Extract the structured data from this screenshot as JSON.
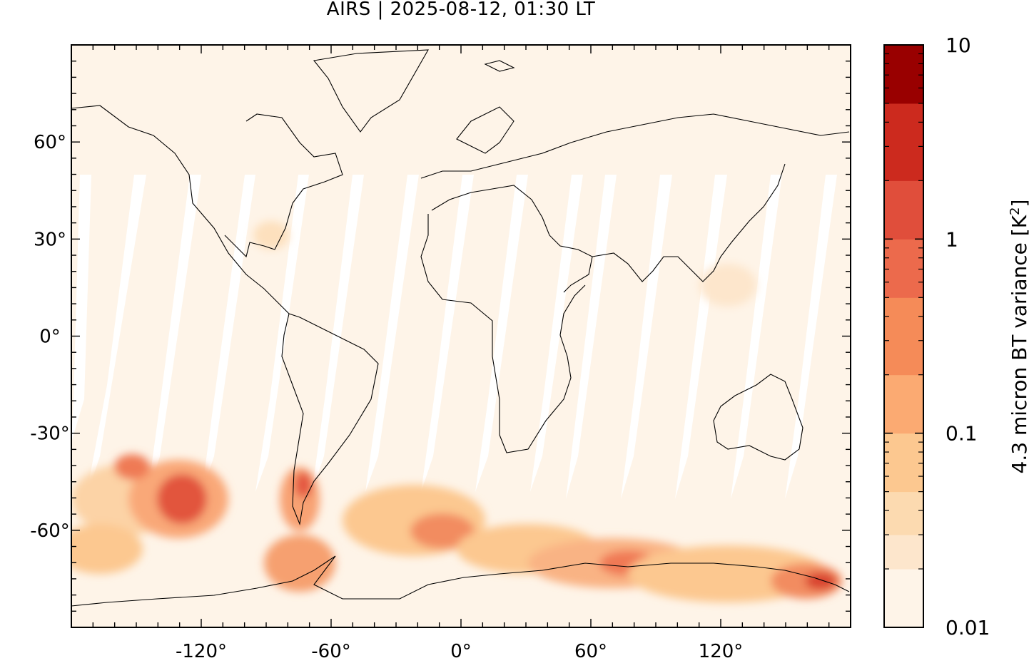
{
  "title": "AIRS | 2025-08-12, 01:30 LT",
  "map": {
    "projection": "equirectangular",
    "lon_range": [
      -180,
      180
    ],
    "lat_range": [
      -90,
      90
    ],
    "x_ticks": [
      {
        "value": -120,
        "label": "-120°"
      },
      {
        "value": -60,
        "label": "-60°"
      },
      {
        "value": 0,
        "label": "0°"
      },
      {
        "value": 60,
        "label": "60°"
      },
      {
        "value": 120,
        "label": "120°"
      }
    ],
    "y_ticks": [
      {
        "value": 60,
        "label": "60°"
      },
      {
        "value": 30,
        "label": "30°"
      },
      {
        "value": 0,
        "label": "0°"
      },
      {
        "value": -30,
        "label": "-30°"
      },
      {
        "value": -60,
        "label": "-60°"
      }
    ],
    "background_color": "#fef4e8",
    "coastline_color": "#000000"
  },
  "colorbar": {
    "label_prefix": "4.3 micron BT variance [K",
    "label_sup": "2",
    "label_suffix": "]",
    "scale": "log",
    "range": [
      0.01,
      10
    ],
    "tick_labels": [
      {
        "value": 10,
        "label": "10"
      },
      {
        "value": 1,
        "label": "1"
      },
      {
        "value": 0.1,
        "label": "0.1"
      },
      {
        "value": 0.01,
        "label": "0.01"
      }
    ],
    "levels": [
      0.01,
      0.02,
      0.03,
      0.05,
      0.1,
      0.2,
      0.5,
      1,
      2,
      5,
      10
    ],
    "colors": [
      "#fef4e8",
      "#fde6cc",
      "#fcdab0",
      "#fcc890",
      "#fbaa72",
      "#f58b58",
      "#ec6a4c",
      "#e04e3b",
      "#cc2a1e",
      "#990000"
    ]
  }
}
